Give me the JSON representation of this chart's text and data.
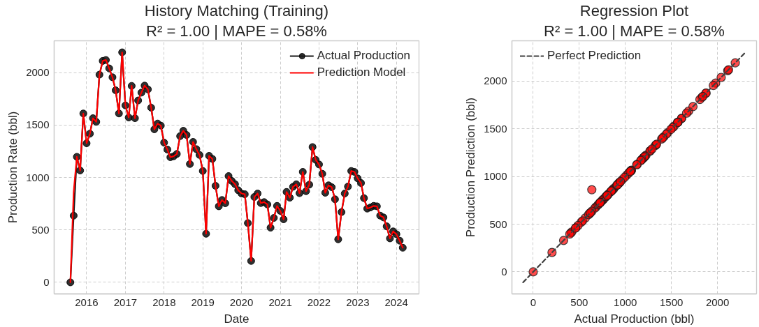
{
  "chart_data": [
    {
      "type": "line",
      "title": "History Matching (Training)",
      "subtitle": "R² = 1.00 | MAPE = 0.58%",
      "xlabel": "Date",
      "ylabel": "Production Rate (bbl)",
      "x": [
        "2015-08",
        "2015-09",
        "2015-10",
        "2015-11",
        "2015-12",
        "2016-01",
        "2016-02",
        "2016-03",
        "2016-04",
        "2016-05",
        "2016-06",
        "2016-07",
        "2016-08",
        "2016-09",
        "2016-10",
        "2016-11",
        "2016-12",
        "2017-01",
        "2017-02",
        "2017-03",
        "2017-04",
        "2017-05",
        "2017-06",
        "2017-07",
        "2017-08",
        "2017-09",
        "2017-10",
        "2017-11",
        "2017-12",
        "2018-01",
        "2018-02",
        "2018-03",
        "2018-04",
        "2018-05",
        "2018-06",
        "2018-07",
        "2018-08",
        "2018-09",
        "2018-10",
        "2018-11",
        "2018-12",
        "2019-01",
        "2019-02",
        "2019-03",
        "2019-04",
        "2019-05",
        "2019-06",
        "2019-07",
        "2019-08",
        "2019-09",
        "2019-10",
        "2019-11",
        "2019-12",
        "2020-01",
        "2020-02",
        "2020-03",
        "2020-04",
        "2020-05",
        "2020-06",
        "2020-07",
        "2020-08",
        "2020-09",
        "2020-10",
        "2020-11",
        "2020-12",
        "2021-01",
        "2021-02",
        "2021-03",
        "2021-04",
        "2021-05",
        "2021-06",
        "2021-07",
        "2021-08",
        "2021-09",
        "2021-10",
        "2021-11",
        "2021-12",
        "2022-01",
        "2022-02",
        "2022-03",
        "2022-04",
        "2022-05",
        "2022-06",
        "2022-07",
        "2022-08",
        "2022-09",
        "2022-10",
        "2022-11",
        "2022-12",
        "2023-01",
        "2023-02",
        "2023-03",
        "2023-04",
        "2023-05",
        "2023-06",
        "2023-07",
        "2023-08",
        "2023-09",
        "2023-10",
        "2023-11",
        "2023-12",
        "2024-01",
        "2024-02",
        "2024-03"
      ],
      "series": [
        {
          "name": "Actual Production",
          "color": "#1a1a1a",
          "marker": "circle",
          "values": [
            0,
            636,
            1197,
            1066,
            1610,
            1326,
            1417,
            1565,
            1530,
            1980,
            2111,
            2120,
            2040,
            1955,
            1831,
            1610,
            2193,
            1687,
            1572,
            1873,
            1565,
            1734,
            1809,
            1876,
            1840,
            1665,
            1459,
            1514,
            1494,
            1332,
            1266,
            1193,
            1202,
            1224,
            1394,
            1445,
            1405,
            1128,
            1339,
            1270,
            1215,
            1062,
            463,
            1206,
            1177,
            920,
            725,
            785,
            754,
            1013,
            967,
            936,
            878,
            847,
            840,
            565,
            204,
            814,
            847,
            756,
            765,
            743,
            521,
            614,
            729,
            681,
            601,
            862,
            807,
            911,
            935,
            850,
            1053,
            869,
            931,
            1290,
            1168,
            1124,
            1035,
            854,
            925,
            907,
            792,
            410,
            670,
            847,
            913,
            1062,
            1053,
            991,
            947,
            803,
            703,
            714,
            729,
            725,
            636,
            619,
            534,
            419,
            486,
            459,
            397,
            330
          ]
        },
        {
          "name": "Prediction Model",
          "color": "#ff0000",
          "values": [
            0,
            862,
            1197,
            1066,
            1610,
            1326,
            1417,
            1565,
            1530,
            1980,
            2111,
            2120,
            2040,
            1955,
            1831,
            1610,
            2193,
            1687,
            1572,
            1873,
            1565,
            1734,
            1809,
            1876,
            1840,
            1665,
            1459,
            1514,
            1494,
            1332,
            1266,
            1193,
            1202,
            1224,
            1394,
            1445,
            1405,
            1128,
            1339,
            1270,
            1215,
            1062,
            463,
            1206,
            1177,
            920,
            725,
            785,
            754,
            1013,
            967,
            936,
            878,
            847,
            840,
            565,
            204,
            814,
            847,
            756,
            765,
            743,
            521,
            614,
            729,
            681,
            601,
            862,
            807,
            911,
            935,
            850,
            1053,
            869,
            931,
            1290,
            1168,
            1124,
            1035,
            854,
            925,
            907,
            792,
            410,
            670,
            847,
            913,
            1062,
            1053,
            991,
            947,
            803,
            703,
            714,
            729,
            725,
            636,
            619,
            534,
            419,
            486,
            459,
            397,
            330
          ]
        }
      ],
      "xlim": [
        "2015-03-01",
        "2024-08-01"
      ],
      "xticks": [
        "2016",
        "2017",
        "2018",
        "2019",
        "2020",
        "2021",
        "2022",
        "2023",
        "2024"
      ],
      "ylim": [
        -110,
        2303
      ],
      "yticks": [
        0,
        500,
        1000,
        1500,
        2000
      ],
      "grid": true,
      "legend": "top right"
    },
    {
      "type": "scatter",
      "title": "Regression Plot",
      "subtitle": "R² = 1.00 | MAPE = 0.58%",
      "xlabel": "Actual Production (bbl)",
      "ylabel": "Production Prediction (bbl)",
      "series": [
        {
          "type": "scatter",
          "color": "#ff0000",
          "marker": "circle",
          "x": [
            0,
            636,
            1197,
            1066,
            1610,
            1326,
            1417,
            1565,
            1530,
            1980,
            2111,
            2120,
            2040,
            1955,
            1831,
            1610,
            2193,
            1687,
            1572,
            1873,
            1565,
            1734,
            1809,
            1876,
            1840,
            1665,
            1459,
            1514,
            1494,
            1332,
            1266,
            1193,
            1202,
            1224,
            1394,
            1445,
            1405,
            1128,
            1339,
            1270,
            1215,
            1062,
            463,
            1206,
            1177,
            785,
            754,
            1013,
            967,
            936,
            878,
            840,
            565,
            204,
            814,
            756,
            765,
            743,
            521,
            614,
            729,
            681,
            601,
            862,
            807,
            911,
            935,
            1053,
            869,
            931,
            1290,
            1168,
            1124,
            1035,
            854,
            925,
            907,
            792,
            410,
            670,
            847,
            913,
            1062,
            1053,
            991,
            947,
            803,
            703,
            714,
            729,
            725,
            636,
            619,
            534,
            419,
            486,
            459,
            397,
            330
          ],
          "values": [
            0,
            862,
            1197,
            1066,
            1610,
            1326,
            1417,
            1565,
            1530,
            1980,
            2111,
            2120,
            2040,
            1955,
            1831,
            1610,
            2193,
            1687,
            1572,
            1873,
            1565,
            1734,
            1809,
            1876,
            1840,
            1665,
            1459,
            1514,
            1494,
            1332,
            1266,
            1193,
            1202,
            1224,
            1394,
            1445,
            1405,
            1128,
            1339,
            1270,
            1215,
            1062,
            463,
            1206,
            1177,
            785,
            754,
            1013,
            967,
            936,
            878,
            840,
            565,
            204,
            814,
            756,
            765,
            743,
            521,
            614,
            729,
            681,
            601,
            862,
            807,
            911,
            935,
            1053,
            869,
            931,
            1290,
            1168,
            1124,
            1035,
            854,
            925,
            907,
            792,
            410,
            670,
            847,
            913,
            1062,
            1053,
            991,
            947,
            803,
            703,
            714,
            729,
            725,
            636,
            619,
            534,
            419,
            486,
            459,
            397,
            330
          ]
        },
        {
          "type": "line",
          "name": "Perfect Prediction",
          "color": "#404040",
          "line_style": "dashed",
          "x": [
            -110,
            2303
          ],
          "values": [
            -110,
            2303
          ]
        }
      ],
      "xlim": [
        -231,
        2424
      ],
      "xticks": [
        0,
        500,
        1000,
        1500,
        2000
      ],
      "ylim": [
        -231,
        2424
      ],
      "yticks": [
        0,
        500,
        1000,
        1500,
        2000
      ],
      "grid": true,
      "legend": "top left"
    }
  ]
}
